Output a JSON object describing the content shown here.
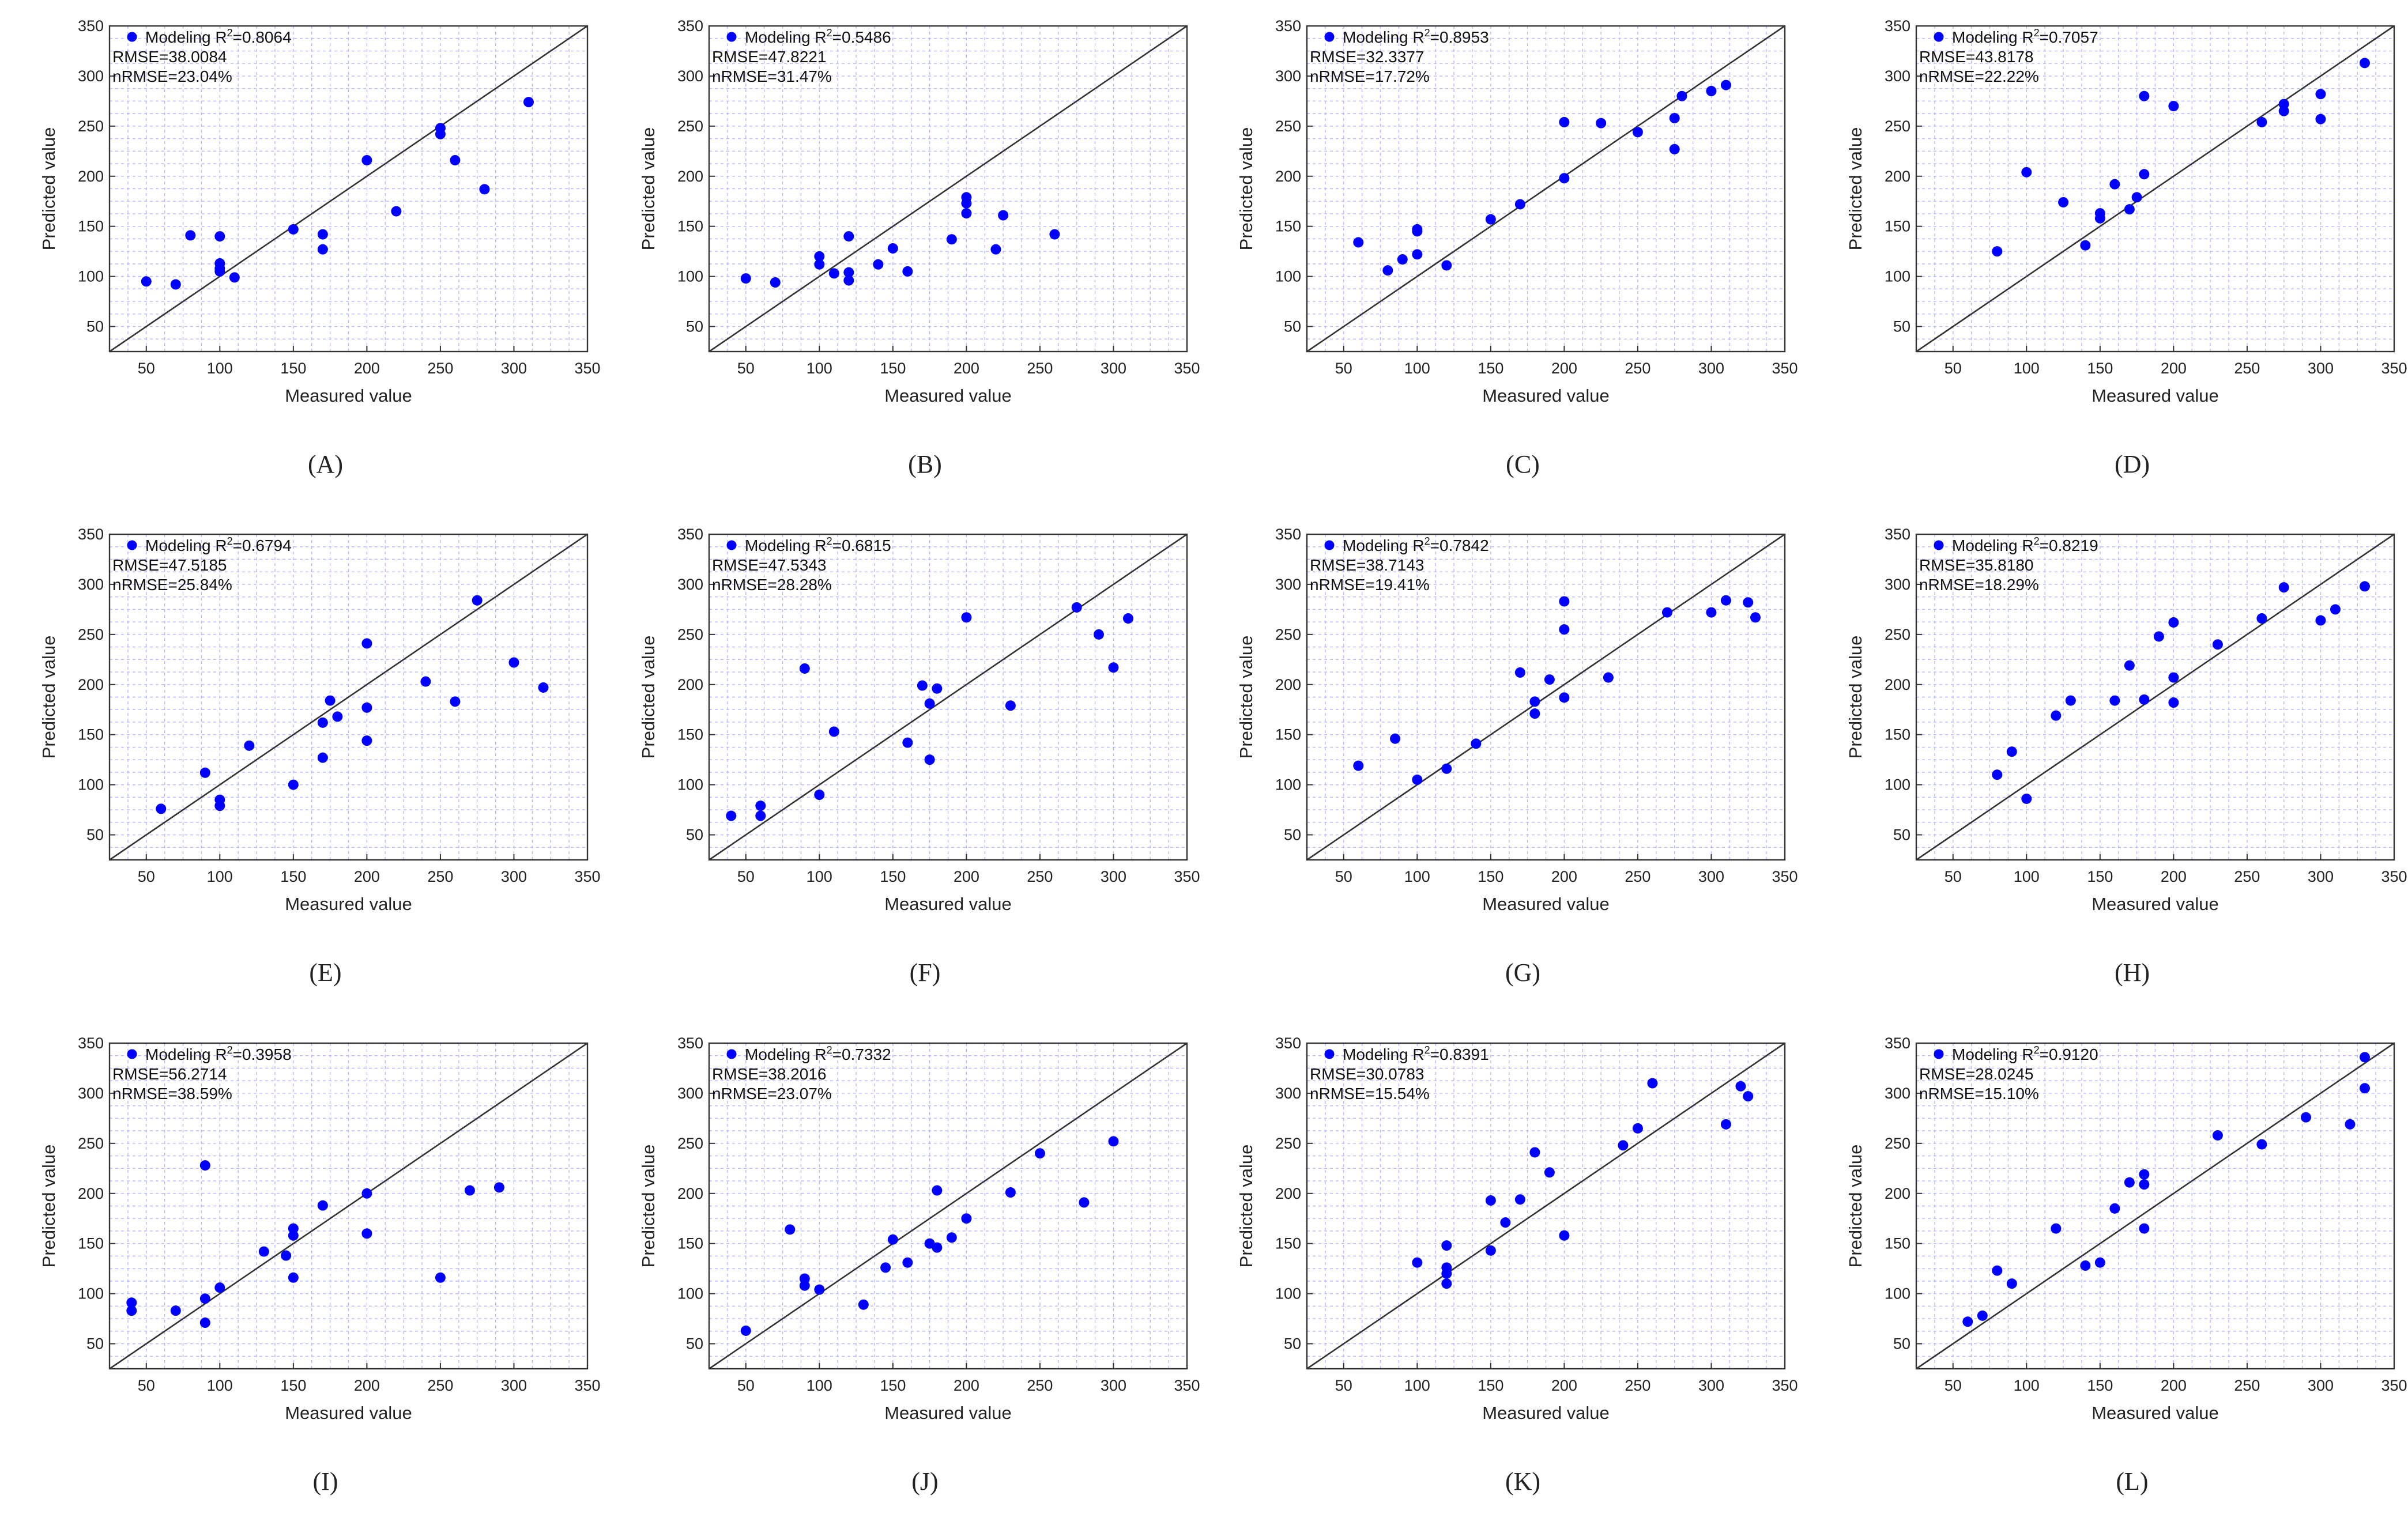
{
  "figure": {
    "point_color": "#0000ff",
    "grid_color": "#b7b7ff",
    "line_color": "#333333"
  },
  "chart_data": [
    {
      "type": "scatter",
      "label": "(A)",
      "xlabel": "Measured value",
      "ylabel": "Predicted value",
      "xlim": [
        25,
        350
      ],
      "ylim": [
        25,
        350
      ],
      "xticks": [
        "50",
        "100",
        "150",
        "200",
        "250",
        "300",
        "350"
      ],
      "yticks": [
        "50",
        "100",
        "150",
        "200",
        "250",
        "300",
        "350"
      ],
      "legend": "Modeling R",
      "legend_sup": "2",
      "r2": "=0.8064",
      "rmse": "RMSE=38.0084",
      "nrmse": "nRMSE=23.04%",
      "reference_line": "1:1",
      "points": [
        [
          50,
          95
        ],
        [
          70,
          92
        ],
        [
          80,
          141
        ],
        [
          100,
          140
        ],
        [
          100,
          113
        ],
        [
          100,
          108
        ],
        [
          100,
          105
        ],
        [
          110,
          99
        ],
        [
          150,
          147
        ],
        [
          170,
          142
        ],
        [
          170,
          127
        ],
        [
          200,
          216
        ],
        [
          220,
          165
        ],
        [
          250,
          248
        ],
        [
          250,
          242
        ],
        [
          260,
          216
        ],
        [
          280,
          187
        ],
        [
          310,
          274
        ]
      ]
    },
    {
      "type": "scatter",
      "label": "(B)",
      "xlabel": "Measured value",
      "ylabel": "Predicted value",
      "xlim": [
        25,
        350
      ],
      "ylim": [
        25,
        350
      ],
      "xticks": [
        "50",
        "100",
        "150",
        "200",
        "250",
        "300",
        "350"
      ],
      "yticks": [
        "50",
        "100",
        "150",
        "200",
        "250",
        "300",
        "350"
      ],
      "legend": "Modeling R",
      "legend_sup": "2",
      "r2": "=0.5486",
      "rmse": "RMSE=47.8221",
      "nrmse": "nRMSE=31.47%",
      "reference_line": "1:1",
      "points": [
        [
          50,
          98
        ],
        [
          70,
          94
        ],
        [
          100,
          120
        ],
        [
          100,
          112
        ],
        [
          110,
          103
        ],
        [
          120,
          140
        ],
        [
          120,
          104
        ],
        [
          120,
          96
        ],
        [
          140,
          112
        ],
        [
          150,
          128
        ],
        [
          160,
          105
        ],
        [
          190,
          137
        ],
        [
          200,
          179
        ],
        [
          200,
          173
        ],
        [
          200,
          163
        ],
        [
          220,
          127
        ],
        [
          225,
          161
        ],
        [
          260,
          142
        ]
      ]
    },
    {
      "type": "scatter",
      "label": "(C)",
      "xlabel": "Measured value",
      "ylabel": "Predicted value",
      "xlim": [
        25,
        350
      ],
      "ylim": [
        25,
        350
      ],
      "xticks": [
        "50",
        "100",
        "150",
        "200",
        "250",
        "300",
        "350"
      ],
      "yticks": [
        "50",
        "100",
        "150",
        "200",
        "250",
        "300",
        "350"
      ],
      "legend": "Modeling R",
      "legend_sup": "2",
      "r2": "=0.8953",
      "rmse": "RMSE=32.3377",
      "nrmse": "nRMSE=17.72%",
      "reference_line": "1:1",
      "points": [
        [
          60,
          134
        ],
        [
          80,
          106
        ],
        [
          90,
          117
        ],
        [
          100,
          147
        ],
        [
          100,
          145
        ],
        [
          100,
          122
        ],
        [
          120,
          111
        ],
        [
          150,
          157
        ],
        [
          170,
          172
        ],
        [
          200,
          254
        ],
        [
          200,
          198
        ],
        [
          225,
          253
        ],
        [
          250,
          244
        ],
        [
          275,
          258
        ],
        [
          275,
          227
        ],
        [
          280,
          280
        ],
        [
          300,
          285
        ],
        [
          310,
          291
        ]
      ]
    },
    {
      "type": "scatter",
      "label": "(D)",
      "xlabel": "Measured value",
      "ylabel": "Predicted value",
      "xlim": [
        25,
        350
      ],
      "ylim": [
        25,
        350
      ],
      "xticks": [
        "50",
        "100",
        "150",
        "200",
        "250",
        "300",
        "350"
      ],
      "yticks": [
        "50",
        "100",
        "150",
        "200",
        "250",
        "300",
        "350"
      ],
      "legend": "Modeling R",
      "legend_sup": "2",
      "r2": "=0.7057",
      "rmse": "RMSE=43.8178",
      "nrmse": "nRMSE=22.22%",
      "reference_line": "1:1",
      "points": [
        [
          80,
          125
        ],
        [
          100,
          204
        ],
        [
          125,
          174
        ],
        [
          140,
          131
        ],
        [
          150,
          163
        ],
        [
          150,
          158
        ],
        [
          160,
          192
        ],
        [
          170,
          167
        ],
        [
          175,
          179
        ],
        [
          180,
          280
        ],
        [
          180,
          202
        ],
        [
          200,
          270
        ],
        [
          260,
          254
        ],
        [
          275,
          272
        ],
        [
          275,
          265
        ],
        [
          300,
          282
        ],
        [
          300,
          257
        ],
        [
          330,
          313
        ]
      ]
    },
    {
      "type": "scatter",
      "label": "(E)",
      "xlabel": "Measured value",
      "ylabel": "Predicted value",
      "xlim": [
        25,
        350
      ],
      "ylim": [
        25,
        350
      ],
      "xticks": [
        "50",
        "100",
        "150",
        "200",
        "250",
        "300",
        "350"
      ],
      "yticks": [
        "50",
        "100",
        "150",
        "200",
        "250",
        "300",
        "350"
      ],
      "legend": "Modeling R",
      "legend_sup": "2",
      "r2": "=0.6794",
      "rmse": "RMSE=47.5185",
      "nrmse": "nRMSE=25.84%",
      "reference_line": "1:1",
      "points": [
        [
          60,
          76
        ],
        [
          90,
          112
        ],
        [
          100,
          85
        ],
        [
          100,
          79
        ],
        [
          120,
          139
        ],
        [
          150,
          100
        ],
        [
          170,
          162
        ],
        [
          170,
          127
        ],
        [
          175,
          184
        ],
        [
          180,
          168
        ],
        [
          200,
          241
        ],
        [
          200,
          177
        ],
        [
          200,
          144
        ],
        [
          240,
          203
        ],
        [
          260,
          183
        ],
        [
          275,
          284
        ],
        [
          300,
          222
        ],
        [
          320,
          197
        ]
      ]
    },
    {
      "type": "scatter",
      "label": "(F)",
      "xlabel": "Measured value",
      "ylabel": "Predicted value",
      "xlim": [
        25,
        350
      ],
      "ylim": [
        25,
        350
      ],
      "xticks": [
        "50",
        "100",
        "150",
        "200",
        "250",
        "300",
        "350"
      ],
      "yticks": [
        "50",
        "100",
        "150",
        "200",
        "250",
        "300",
        "350"
      ],
      "legend": "Modeling R",
      "legend_sup": "2",
      "r2": "=0.6815",
      "rmse": "RMSE=47.5343",
      "nrmse": "nRMSE=28.28%",
      "reference_line": "1:1",
      "points": [
        [
          40,
          69
        ],
        [
          60,
          79
        ],
        [
          60,
          69
        ],
        [
          90,
          216
        ],
        [
          100,
          90
        ],
        [
          110,
          153
        ],
        [
          160,
          142
        ],
        [
          170,
          199
        ],
        [
          175,
          181
        ],
        [
          175,
          125
        ],
        [
          180,
          196
        ],
        [
          200,
          267
        ],
        [
          230,
          179
        ],
        [
          275,
          277
        ],
        [
          290,
          250
        ],
        [
          300,
          217
        ],
        [
          310,
          266
        ]
      ]
    },
    {
      "type": "scatter",
      "label": "(G)",
      "xlabel": "Measured value",
      "ylabel": "Predicted value",
      "xlim": [
        25,
        350
      ],
      "ylim": [
        25,
        350
      ],
      "xticks": [
        "50",
        "100",
        "150",
        "200",
        "250",
        "300",
        "350"
      ],
      "yticks": [
        "50",
        "100",
        "150",
        "200",
        "250",
        "300",
        "350"
      ],
      "legend": "Modeling R",
      "legend_sup": "2",
      "r2": "=0.7842",
      "rmse": "RMSE=38.7143",
      "nrmse": "nRMSE=19.41%",
      "reference_line": "1:1",
      "points": [
        [
          60,
          119
        ],
        [
          85,
          146
        ],
        [
          100,
          105
        ],
        [
          120,
          116
        ],
        [
          140,
          141
        ],
        [
          170,
          212
        ],
        [
          180,
          183
        ],
        [
          180,
          171
        ],
        [
          190,
          205
        ],
        [
          200,
          283
        ],
        [
          200,
          255
        ],
        [
          200,
          187
        ],
        [
          230,
          207
        ],
        [
          270,
          272
        ],
        [
          300,
          272
        ],
        [
          310,
          284
        ],
        [
          325,
          282
        ],
        [
          330,
          267
        ]
      ]
    },
    {
      "type": "scatter",
      "label": "(H)",
      "xlabel": "Measured value",
      "ylabel": "Predicted value",
      "xlim": [
        25,
        350
      ],
      "ylim": [
        25,
        350
      ],
      "xticks": [
        "50",
        "100",
        "150",
        "200",
        "250",
        "300",
        "350"
      ],
      "yticks": [
        "50",
        "100",
        "150",
        "200",
        "250",
        "300",
        "350"
      ],
      "legend": "Modeling R",
      "legend_sup": "2",
      "r2": "=0.8219",
      "rmse": "RMSE=35.8180",
      "nrmse": "nRMSE=18.29%",
      "reference_line": "1:1",
      "points": [
        [
          80,
          110
        ],
        [
          90,
          133
        ],
        [
          100,
          86
        ],
        [
          120,
          169
        ],
        [
          130,
          184
        ],
        [
          160,
          184
        ],
        [
          170,
          219
        ],
        [
          180,
          185
        ],
        [
          190,
          248
        ],
        [
          200,
          262
        ],
        [
          200,
          207
        ],
        [
          200,
          182
        ],
        [
          230,
          240
        ],
        [
          260,
          266
        ],
        [
          275,
          297
        ],
        [
          300,
          264
        ],
        [
          310,
          275
        ],
        [
          330,
          298
        ]
      ]
    },
    {
      "type": "scatter",
      "label": "(I)",
      "xlabel": "Measured value",
      "ylabel": "Predicted value",
      "xlim": [
        25,
        350
      ],
      "ylim": [
        25,
        350
      ],
      "xticks": [
        "50",
        "100",
        "150",
        "200",
        "250",
        "300",
        "350"
      ],
      "yticks": [
        "50",
        "100",
        "150",
        "200",
        "250",
        "300",
        "350"
      ],
      "legend": "Modeling R",
      "legend_sup": "2",
      "r2": "=0.3958",
      "rmse": "RMSE=56.2714",
      "nrmse": "nRMSE=38.59%",
      "reference_line": "1:1",
      "points": [
        [
          40,
          91
        ],
        [
          40,
          83
        ],
        [
          70,
          83
        ],
        [
          90,
          228
        ],
        [
          90,
          95
        ],
        [
          90,
          71
        ],
        [
          100,
          106
        ],
        [
          130,
          142
        ],
        [
          145,
          138
        ],
        [
          150,
          165
        ],
        [
          150,
          158
        ],
        [
          150,
          116
        ],
        [
          170,
          188
        ],
        [
          200,
          200
        ],
        [
          200,
          160
        ],
        [
          250,
          116
        ],
        [
          270,
          203
        ],
        [
          290,
          206
        ]
      ]
    },
    {
      "type": "scatter",
      "label": "(J)",
      "xlabel": "Measured value",
      "ylabel": "Predicted value",
      "xlim": [
        25,
        350
      ],
      "ylim": [
        25,
        350
      ],
      "xticks": [
        "50",
        "100",
        "150",
        "200",
        "250",
        "300",
        "350"
      ],
      "yticks": [
        "50",
        "100",
        "150",
        "200",
        "250",
        "300",
        "350"
      ],
      "legend": "Modeling R",
      "legend_sup": "2",
      "r2": "=0.7332",
      "rmse": "RMSE=38.2016",
      "nrmse": "nRMSE=23.07%",
      "reference_line": "1:1",
      "points": [
        [
          50,
          63
        ],
        [
          80,
          164
        ],
        [
          90,
          115
        ],
        [
          90,
          108
        ],
        [
          100,
          104
        ],
        [
          130,
          89
        ],
        [
          145,
          126
        ],
        [
          150,
          154
        ],
        [
          160,
          131
        ],
        [
          175,
          150
        ],
        [
          180,
          203
        ],
        [
          180,
          146
        ],
        [
          190,
          156
        ],
        [
          200,
          175
        ],
        [
          230,
          201
        ],
        [
          250,
          240
        ],
        [
          280,
          191
        ],
        [
          300,
          252
        ]
      ]
    },
    {
      "type": "scatter",
      "label": "(K)",
      "xlabel": "Measured value",
      "ylabel": "Predicted value",
      "xlim": [
        25,
        350
      ],
      "ylim": [
        25,
        350
      ],
      "xticks": [
        "50",
        "100",
        "150",
        "200",
        "250",
        "300",
        "350"
      ],
      "yticks": [
        "50",
        "100",
        "150",
        "200",
        "250",
        "300",
        "350"
      ],
      "legend": "Modeling R",
      "legend_sup": "2",
      "r2": "=0.8391",
      "rmse": "RMSE=30.0783",
      "nrmse": "nRMSE=15.54%",
      "reference_line": "1:1",
      "points": [
        [
          100,
          131
        ],
        [
          120,
          148
        ],
        [
          120,
          126
        ],
        [
          120,
          120
        ],
        [
          120,
          110
        ],
        [
          150,
          193
        ],
        [
          150,
          143
        ],
        [
          160,
          171
        ],
        [
          170,
          194
        ],
        [
          180,
          241
        ],
        [
          190,
          221
        ],
        [
          200,
          158
        ],
        [
          240,
          248
        ],
        [
          250,
          265
        ],
        [
          260,
          310
        ],
        [
          310,
          269
        ],
        [
          320,
          307
        ],
        [
          325,
          297
        ]
      ]
    },
    {
      "type": "scatter",
      "label": "(L)",
      "xlabel": "Measured value",
      "ylabel": "Predicted value",
      "xlim": [
        25,
        350
      ],
      "ylim": [
        25,
        350
      ],
      "xticks": [
        "50",
        "100",
        "150",
        "200",
        "250",
        "300",
        "350"
      ],
      "yticks": [
        "50",
        "100",
        "150",
        "200",
        "250",
        "300",
        "350"
      ],
      "legend": "Modeling R",
      "legend_sup": "2",
      "r2": "=0.9120",
      "rmse": "RMSE=28.0245",
      "nrmse": "nRMSE=15.10%",
      "reference_line": "1:1",
      "points": [
        [
          60,
          72
        ],
        [
          70,
          78
        ],
        [
          80,
          123
        ],
        [
          90,
          110
        ],
        [
          120,
          165
        ],
        [
          140,
          128
        ],
        [
          150,
          131
        ],
        [
          160,
          185
        ],
        [
          170,
          211
        ],
        [
          180,
          219
        ],
        [
          180,
          209
        ],
        [
          180,
          165
        ],
        [
          230,
          258
        ],
        [
          260,
          249
        ],
        [
          290,
          276
        ],
        [
          320,
          269
        ],
        [
          330,
          336
        ],
        [
          330,
          305
        ]
      ]
    }
  ]
}
